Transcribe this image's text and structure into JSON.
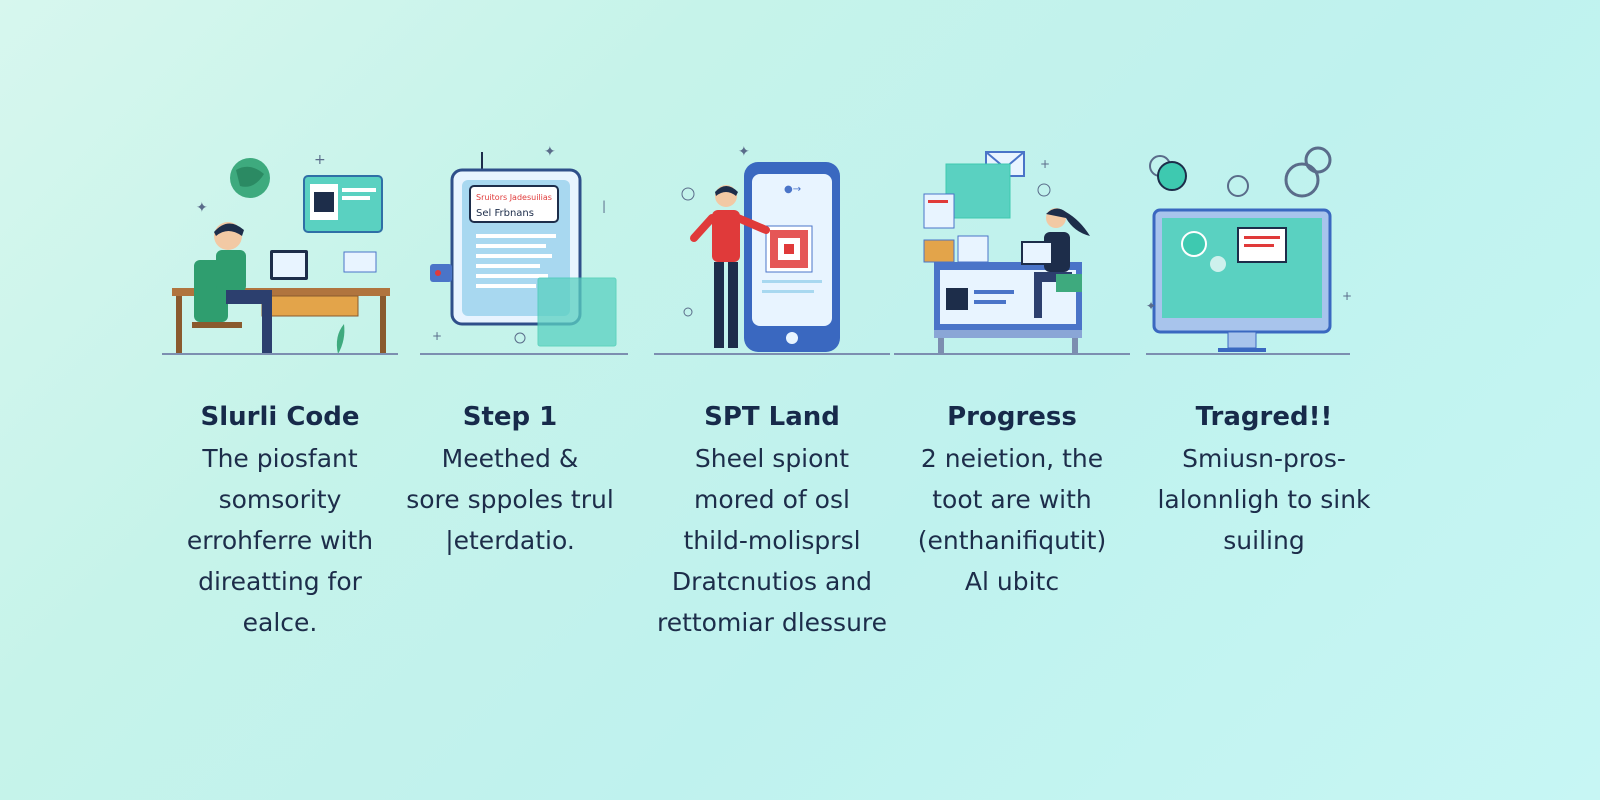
{
  "steps": [
    {
      "title": "Slurli Code",
      "lines": [
        "The piosfant",
        "somsority",
        "errohferre with",
        "direatting for",
        "ealce."
      ],
      "illustration": "person-at-desk-laptop-qr"
    },
    {
      "title": "Step 1",
      "lines": [
        "Meethed &",
        "sore sppoles trul",
        "|eterdatio."
      ],
      "illustration": "document-window",
      "doc_label_top": "Sruitors Jadesuilias",
      "doc_label": "Sel Frbnans"
    },
    {
      "title": "SPT Land",
      "lines": [
        "Sheel spiont",
        "mored of osl",
        "thild-molisprsl",
        "Dratcnutios and",
        "rettomiar dlessure"
      ],
      "illustration": "person-with-phone-qr"
    },
    {
      "title": "Progress",
      "lines": [
        "2 neietion, the",
        "toot are with",
        "(enthanifiqutit)",
        "Al ubitc"
      ],
      "illustration": "woman-at-workstation"
    },
    {
      "title": "Tragred!!",
      "lines": [
        "Smiusn-pros-",
        "lalonnligh to sink",
        "suiling"
      ],
      "illustration": "monitor-dashboard"
    }
  ],
  "colors": {
    "navy": "#172a4a",
    "teal": "#3ec9b0",
    "blue": "#4a74c8",
    "red": "#e03a3a"
  }
}
